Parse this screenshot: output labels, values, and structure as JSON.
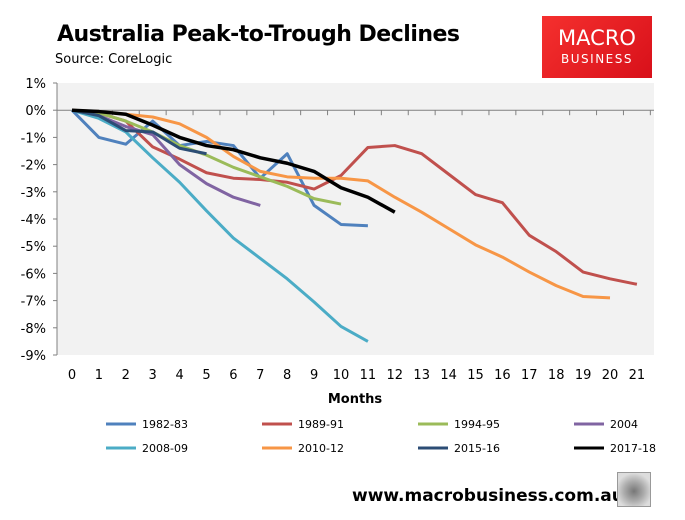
{
  "chart_data": {
    "type": "line",
    "title": "Australia Peak-to-Trough Declines",
    "subtitle": "Source: CoreLogic",
    "xlabel": "Months",
    "ylabel": "",
    "x_ticks": [
      0,
      1,
      2,
      3,
      4,
      5,
      6,
      7,
      8,
      9,
      10,
      11,
      12,
      13,
      14,
      15,
      16,
      17,
      18,
      19,
      20,
      21
    ],
    "y_ticks": [
      1,
      0,
      -1,
      -2,
      -3,
      -4,
      -5,
      -6,
      -7,
      -8,
      -9
    ],
    "y_tick_labels": [
      "1%",
      "0%",
      "-1%",
      "-2%",
      "-3%",
      "-4%",
      "-5%",
      "-6%",
      "-7%",
      "-8%",
      "-9%"
    ],
    "xlim": [
      0,
      21
    ],
    "ylim": [
      -9,
      1
    ],
    "grid": false,
    "legend_position": "bottom",
    "series": [
      {
        "name": "1982-83",
        "color": "#4f81bd",
        "values": [
          0,
          -1.0,
          -1.25,
          -0.4,
          -1.3,
          -1.15,
          -1.3,
          -2.5,
          -1.6,
          -3.5,
          -4.2,
          -4.25
        ]
      },
      {
        "name": "1989-91",
        "color": "#c0504d",
        "values": [
          0,
          -0.1,
          -0.4,
          -1.35,
          -1.8,
          -2.3,
          -2.5,
          -2.55,
          -2.65,
          -2.9,
          -2.4,
          -1.37,
          -1.3,
          -1.6,
          -2.35,
          -3.1,
          -3.4,
          -4.6,
          -5.2,
          -5.95,
          -6.2,
          -6.4
        ]
      },
      {
        "name": "1994-95",
        "color": "#9bbb59",
        "values": [
          0,
          -0.1,
          -0.4,
          -0.8,
          -1.3,
          -1.65,
          -2.1,
          -2.45,
          -2.8,
          -3.25,
          -3.45
        ]
      },
      {
        "name": "2004",
        "color": "#8064a2",
        "values": [
          0,
          -0.2,
          -0.6,
          -0.9,
          -2.0,
          -2.7,
          -3.2,
          -3.5
        ]
      },
      {
        "name": "2008-09",
        "color": "#4bacc6",
        "values": [
          0,
          -0.3,
          -0.8,
          -1.75,
          -2.65,
          -3.7,
          -4.7,
          -5.45,
          -6.2,
          -7.05,
          -7.95,
          -8.5
        ]
      },
      {
        "name": "2010-12",
        "color": "#f79646",
        "values": [
          0,
          -0.05,
          -0.15,
          -0.25,
          -0.5,
          -1.0,
          -1.7,
          -2.25,
          -2.45,
          -2.5,
          -2.5,
          -2.6,
          -3.2,
          -3.75,
          -4.35,
          -4.95,
          -5.4,
          -5.95,
          -6.45,
          -6.85,
          -6.9
        ]
      },
      {
        "name": "2015-16",
        "color": "#2c4d75",
        "values": [
          0,
          -0.2,
          -0.75,
          -0.8,
          -1.4,
          -1.6
        ]
      },
      {
        "name": "2017-18",
        "color": "#000000",
        "values": [
          0,
          -0.05,
          -0.15,
          -0.55,
          -1.0,
          -1.3,
          -1.45,
          -1.75,
          -1.95,
          -2.25,
          -2.85,
          -3.2,
          -3.75
        ]
      }
    ]
  },
  "logo": {
    "line1": "MACRO",
    "line2": "BUSINESS",
    "color": "#e8201f"
  },
  "footer": {
    "url": "www.macrobusiness.com.au",
    "icon": "wolf-logo-icon"
  },
  "colors": {
    "plot_bg": "#f2f2f2",
    "axis": "#808080"
  }
}
